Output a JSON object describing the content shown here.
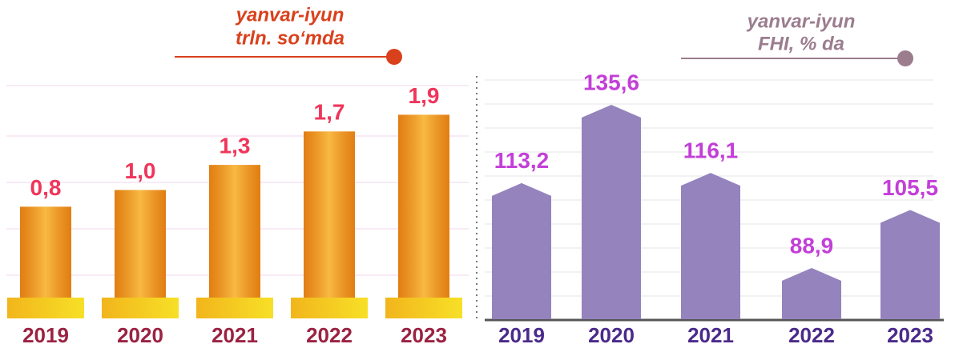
{
  "chart_data": [
    {
      "type": "bar",
      "subtitle": [
        "yanvar-iyun",
        "trln. so‘mda"
      ],
      "categories": [
        "2019",
        "2020",
        "2021",
        "2022",
        "2023"
      ],
      "values": [
        0.8,
        1.0,
        1.3,
        1.7,
        1.9
      ],
      "value_labels": [
        "0,8",
        "1,0",
        "1,3",
        "1,7",
        "1,9"
      ],
      "color": "#f39a1d",
      "ylim": [
        0,
        2.4
      ]
    },
    {
      "type": "pentagon",
      "subtitle": [
        "yanvar-iyun",
        "FHI, % da"
      ],
      "categories": [
        "2019",
        "2020",
        "2021",
        "2022",
        "2023"
      ],
      "values": [
        113.2,
        135.6,
        116.1,
        88.9,
        105.5
      ],
      "value_labels": [
        "113,2",
        "135,6",
        "116,1",
        "88,9",
        "105,5"
      ],
      "color": "#9583bd",
      "ylim": [
        74,
        145
      ]
    }
  ]
}
